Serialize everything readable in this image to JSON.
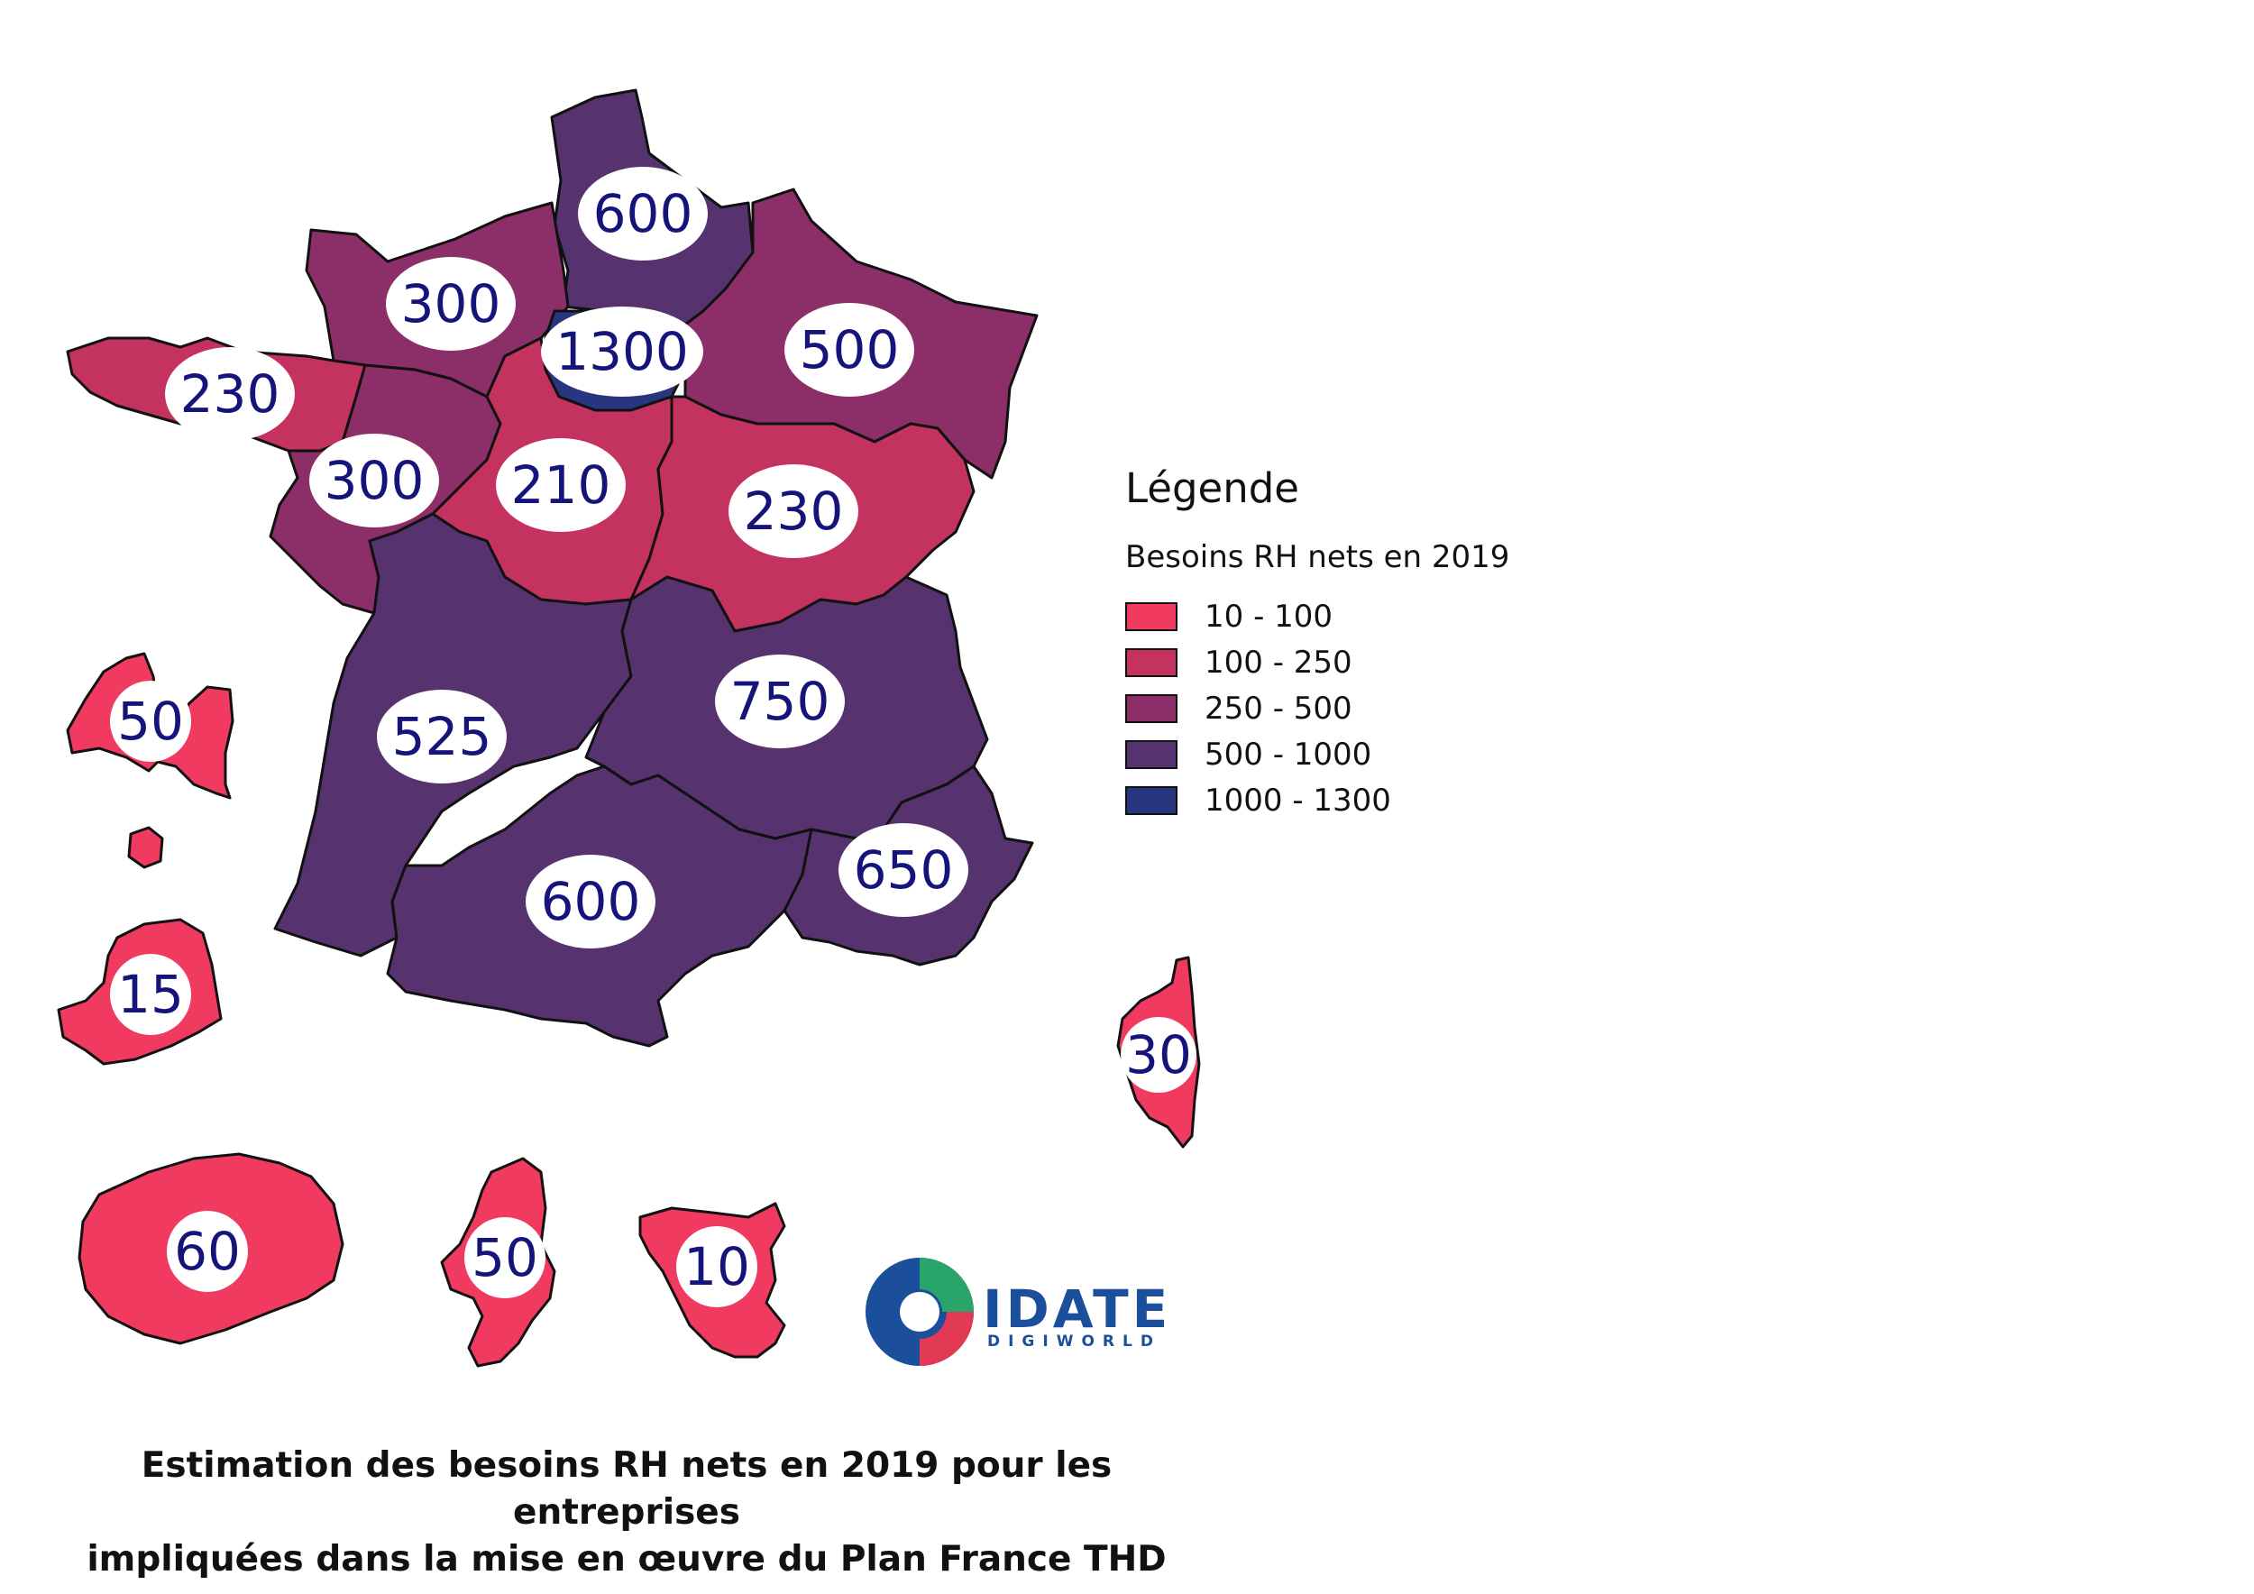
{
  "colors": {
    "class_10_100": "#f03a5f",
    "class_100_250": "#c43360",
    "class_250_500": "#8c2f68",
    "class_500_1000": "#56326e",
    "class_1000_1300": "#2a3580",
    "label_text": "#14147a"
  },
  "regions": [
    {
      "name": "hauts-de-france",
      "value": "600",
      "class": "500 - 1000"
    },
    {
      "name": "normandie",
      "value": "300",
      "class": "250 - 500"
    },
    {
      "name": "ile-de-france",
      "value": "1300",
      "class": "1000 - 1300"
    },
    {
      "name": "grand-est",
      "value": "500",
      "class": "250 - 500"
    },
    {
      "name": "bretagne",
      "value": "230",
      "class": "100 - 250"
    },
    {
      "name": "pays-de-la-loire",
      "value": "300",
      "class": "250 - 500"
    },
    {
      "name": "centre-val-de-loire",
      "value": "210",
      "class": "100 - 250"
    },
    {
      "name": "bourgogne-franche-comte",
      "value": "230",
      "class": "100 - 250"
    },
    {
      "name": "nouvelle-aquitaine",
      "value": "525",
      "class": "500 - 1000"
    },
    {
      "name": "auvergne-rhone-alpes",
      "value": "750",
      "class": "500 - 1000"
    },
    {
      "name": "occitanie",
      "value": "600",
      "class": "500 - 1000"
    },
    {
      "name": "provence-alpes-cote-d-azur",
      "value": "650",
      "class": "500 - 1000"
    },
    {
      "name": "corse",
      "value": "30",
      "class": "10 - 100"
    },
    {
      "name": "guadeloupe",
      "value": "50",
      "class": "10 - 100"
    },
    {
      "name": "martinique",
      "value": "15",
      "class": "10 - 100"
    },
    {
      "name": "reunion",
      "value": "60",
      "class": "10 - 100"
    },
    {
      "name": "mayotte",
      "value": "50",
      "class": "10 - 100"
    },
    {
      "name": "guyane",
      "value": "10",
      "class": "10 - 100"
    }
  ],
  "legend": {
    "title": "Légende",
    "subtitle": "Besoins RH nets en 2019",
    "items": [
      {
        "label": "10 - 100",
        "color": "#f03a5f"
      },
      {
        "label": "100 - 250",
        "color": "#c43360"
      },
      {
        "label": "250 - 500",
        "color": "#8c2f68"
      },
      {
        "label": "500 - 1000",
        "color": "#56326e"
      },
      {
        "label": "1000 - 1300",
        "color": "#2a3580"
      }
    ]
  },
  "logo": {
    "name": "IDATE",
    "tagline": "DIGIWORLD"
  },
  "caption": {
    "line1": "Estimation des besoins RH nets en 2019 pour les entreprises",
    "line2": "impliquées dans la mise en œuvre du Plan France THD"
  }
}
